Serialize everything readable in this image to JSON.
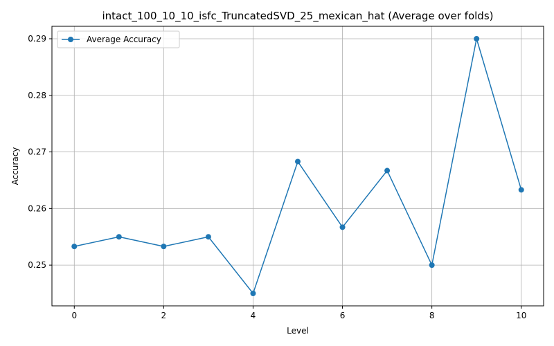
{
  "chart_data": {
    "type": "line",
    "title": "intact_100_10_10_isfc_TruncatedSVD_25_mexican_hat (Average over folds)",
    "xlabel": "Level",
    "ylabel": "Accuracy",
    "xlim": [
      -0.5,
      10.5
    ],
    "ylim": [
      0.2428,
      0.2922
    ],
    "xticks": [
      0,
      2,
      4,
      6,
      8,
      10
    ],
    "yticks": [
      0.25,
      0.26,
      0.27,
      0.28,
      0.29
    ],
    "ytick_labels": [
      "0.25",
      "0.26",
      "0.27",
      "0.28",
      "0.29"
    ],
    "grid": true,
    "legend_position": "top-left",
    "series": [
      {
        "name": "Average Accuracy",
        "color": "#1f77b4",
        "marker": "circle",
        "x": [
          0,
          1,
          2,
          3,
          4,
          5,
          6,
          7,
          8,
          9,
          10
        ],
        "y": [
          0.2533,
          0.255,
          0.2533,
          0.255,
          0.245,
          0.2683,
          0.2567,
          0.2667,
          0.25,
          0.29,
          0.2633
        ]
      }
    ]
  }
}
